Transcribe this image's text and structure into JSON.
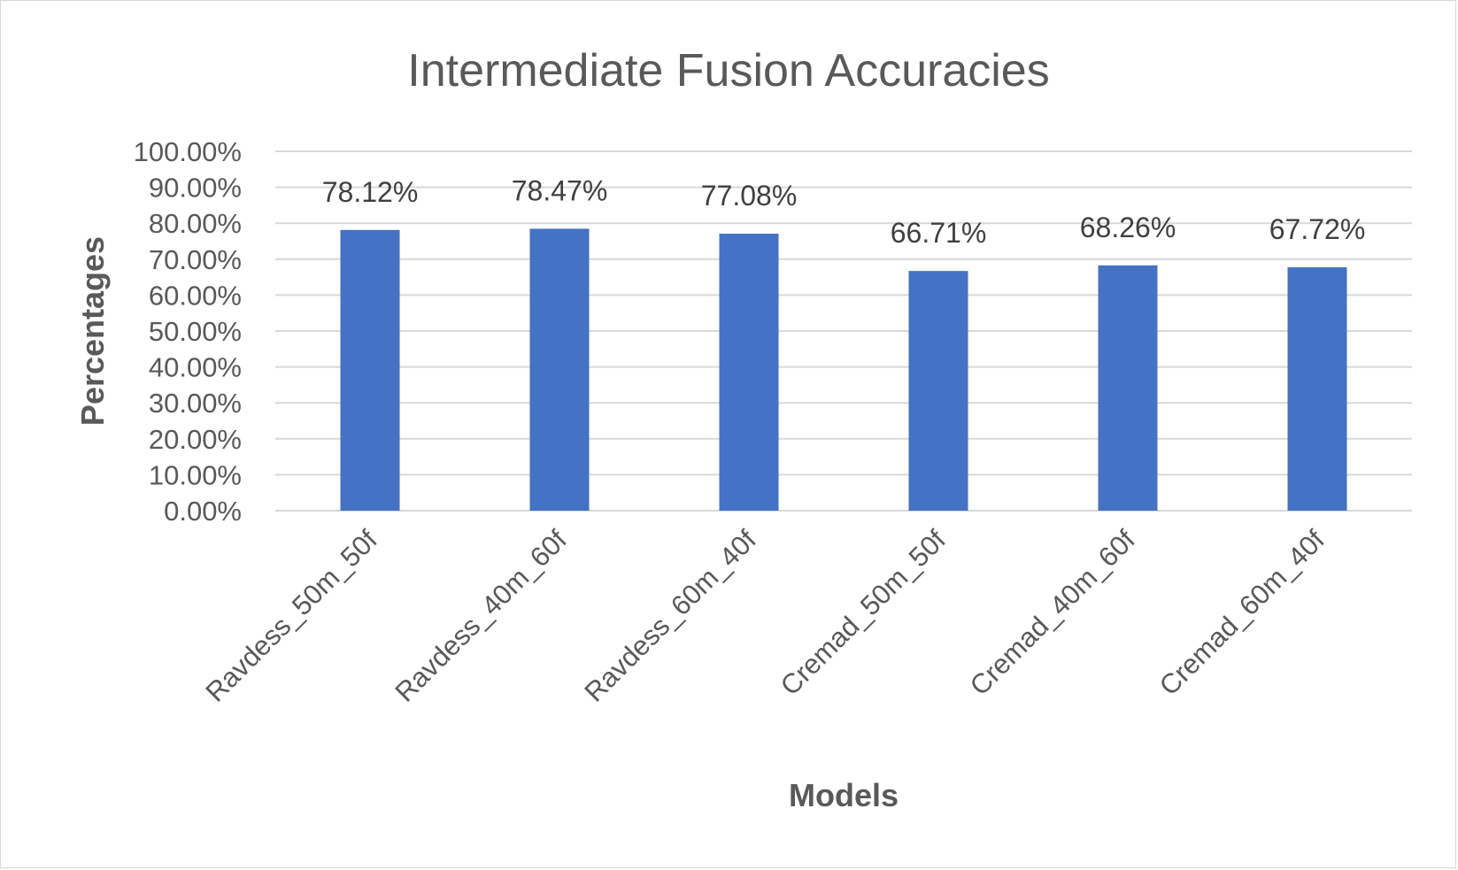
{
  "chart_data": {
    "type": "bar",
    "title": "Intermediate Fusion Accuracies",
    "xlabel": "Models",
    "ylabel": "Percentages",
    "categories": [
      "Ravdess_50m_50f",
      "Ravdess_40m_60f",
      "Ravdess_60m_40f",
      "Cremad_50m_50f",
      "Cremad_40m_60f",
      "Cremad_60m_40f"
    ],
    "values": [
      78.12,
      78.47,
      77.08,
      66.71,
      68.26,
      67.72
    ],
    "data_labels": [
      "78.12%",
      "78.47%",
      "77.08%",
      "66.71%",
      "68.26%",
      "67.72%"
    ],
    "ylim": [
      0,
      100
    ],
    "yticks": [
      0,
      10,
      20,
      30,
      40,
      50,
      60,
      70,
      80,
      90,
      100
    ],
    "ytick_labels": [
      "0.00%",
      "10.00%",
      "20.00%",
      "30.00%",
      "40.00%",
      "50.00%",
      "60.00%",
      "70.00%",
      "80.00%",
      "90.00%",
      "100.00%"
    ],
    "bar_color": "#4472C4",
    "grid": true,
    "legend": "none"
  }
}
